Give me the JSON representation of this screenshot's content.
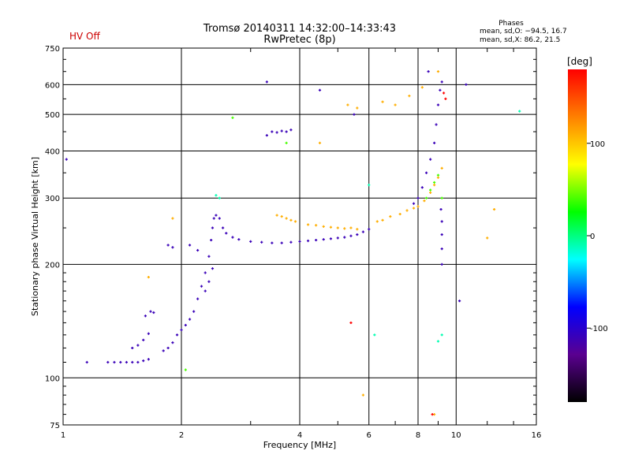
{
  "header": {
    "title": "Tromsø 20140311 14:32:00–14:33:43",
    "subtitle": "RwPretec (8p)",
    "hv_status": "HV Off",
    "hv_color": "#cc0000",
    "phases_title": "Phases",
    "phases_o": "mean, sd,O: −94.5, 16.7",
    "phases_x": "mean, sd,X:  86.2, 21.5"
  },
  "colorbar": {
    "unit": "[deg]",
    "ticks": [
      "100",
      "0",
      "-100"
    ],
    "range": [
      -180,
      180
    ],
    "colors": [
      "#000000",
      "#5a0090",
      "#0000ff",
      "#00ffff",
      "#00ff00",
      "#ffff00",
      "#ff8000",
      "#ff0000"
    ]
  },
  "chart_data": {
    "type": "scatter",
    "xlabel": "Frequency [MHz]",
    "ylabel": "Stationary phase Virtual Height [km]",
    "x_scale": "log",
    "y_scale": "log",
    "xlim": [
      1,
      16
    ],
    "ylim": [
      75,
      750
    ],
    "x_ticks": [
      "1",
      "2",
      "4",
      "6",
      "8",
      "10",
      "16"
    ],
    "y_ticks": [
      "75",
      "100",
      "200",
      "300",
      "400",
      "500",
      "600",
      "750"
    ],
    "grid": true,
    "series": [
      {
        "color_value": -110,
        "points": [
          [
            1.3,
            110
          ],
          [
            1.35,
            110
          ],
          [
            1.4,
            110
          ],
          [
            1.45,
            110
          ],
          [
            1.5,
            110
          ],
          [
            1.55,
            110
          ],
          [
            1.6,
            111
          ],
          [
            1.65,
            112
          ],
          [
            1.5,
            120
          ],
          [
            1.55,
            122
          ],
          [
            1.6,
            126
          ],
          [
            1.65,
            131
          ],
          [
            1.62,
            146
          ],
          [
            1.67,
            150
          ],
          [
            1.7,
            149
          ],
          [
            1.8,
            118
          ],
          [
            1.85,
            120
          ],
          [
            1.9,
            124
          ],
          [
            1.95,
            130
          ],
          [
            2.0,
            134
          ],
          [
            2.05,
            138
          ],
          [
            2.1,
            143
          ],
          [
            2.15,
            150
          ],
          [
            2.2,
            162
          ],
          [
            2.25,
            175
          ],
          [
            2.3,
            190
          ],
          [
            2.35,
            210
          ],
          [
            2.38,
            232
          ],
          [
            2.4,
            250
          ],
          [
            2.42,
            265
          ],
          [
            2.45,
            270
          ],
          [
            2.3,
            170
          ],
          [
            2.35,
            180
          ],
          [
            2.4,
            195
          ],
          [
            1.85,
            225
          ],
          [
            1.9,
            222
          ],
          [
            2.1,
            225
          ],
          [
            2.2,
            218
          ],
          [
            2.5,
            265
          ],
          [
            2.55,
            250
          ],
          [
            2.6,
            242
          ],
          [
            2.7,
            236
          ],
          [
            2.8,
            233
          ],
          [
            3.0,
            230
          ],
          [
            3.2,
            229
          ],
          [
            3.4,
            228
          ],
          [
            3.6,
            228
          ],
          [
            3.8,
            229
          ],
          [
            4.0,
            230
          ],
          [
            4.2,
            231
          ],
          [
            4.4,
            232
          ],
          [
            4.6,
            233
          ],
          [
            4.8,
            234
          ],
          [
            5.0,
            235
          ],
          [
            5.2,
            236
          ],
          [
            5.4,
            238
          ],
          [
            5.6,
            240
          ],
          [
            5.8,
            244
          ],
          [
            6.0,
            248
          ],
          [
            3.3,
            440
          ],
          [
            3.4,
            450
          ],
          [
            3.5,
            448
          ],
          [
            3.6,
            452
          ],
          [
            3.7,
            450
          ],
          [
            3.8,
            455
          ],
          [
            7.8,
            290
          ],
          [
            8.0,
            300
          ],
          [
            8.2,
            320
          ],
          [
            8.4,
            350
          ],
          [
            8.6,
            380
          ],
          [
            8.8,
            420
          ],
          [
            8.9,
            470
          ],
          [
            9.0,
            530
          ],
          [
            9.1,
            580
          ],
          [
            9.2,
            610
          ],
          [
            9.2,
            200
          ],
          [
            9.2,
            220
          ],
          [
            9.2,
            240
          ],
          [
            9.2,
            260
          ],
          [
            9.15,
            280
          ],
          [
            8.5,
            650
          ],
          [
            3.3,
            610
          ],
          [
            4.5,
            580
          ],
          [
            5.5,
            500
          ],
          [
            10.6,
            600
          ],
          [
            10.2,
            160
          ],
          [
            1.15,
            110
          ],
          [
            1.02,
            380
          ]
        ]
      },
      {
        "color_value": 110,
        "points": [
          [
            3.5,
            270
          ],
          [
            3.6,
            268
          ],
          [
            3.7,
            265
          ],
          [
            3.8,
            262
          ],
          [
            3.9,
            260
          ],
          [
            4.2,
            255
          ],
          [
            4.4,
            254
          ],
          [
            4.6,
            252
          ],
          [
            4.8,
            251
          ],
          [
            5.0,
            250
          ],
          [
            5.2,
            249
          ],
          [
            5.4,
            250
          ],
          [
            5.6,
            248
          ],
          [
            6.3,
            260
          ],
          [
            6.5,
            262
          ],
          [
            6.8,
            268
          ],
          [
            7.2,
            272
          ],
          [
            7.5,
            278
          ],
          [
            7.8,
            282
          ],
          [
            8.0,
            285
          ],
          [
            8.3,
            295
          ],
          [
            8.6,
            310
          ],
          [
            8.8,
            325
          ],
          [
            9.0,
            340
          ],
          [
            9.2,
            360
          ],
          [
            5.3,
            530
          ],
          [
            5.6,
            520
          ],
          [
            6.5,
            540
          ],
          [
            7.0,
            530
          ],
          [
            7.6,
            560
          ],
          [
            8.2,
            590
          ],
          [
            9.0,
            650
          ],
          [
            4.5,
            420
          ],
          [
            1.65,
            185
          ],
          [
            1.9,
            265
          ],
          [
            5.8,
            90
          ],
          [
            8.8,
            80
          ],
          [
            12.5,
            280
          ],
          [
            12.0,
            235
          ]
        ]
      },
      {
        "color_value": 40,
        "points": [
          [
            8.4,
            300
          ],
          [
            8.6,
            315
          ],
          [
            8.8,
            330
          ],
          [
            9.0,
            345
          ],
          [
            9.2,
            300
          ],
          [
            3.7,
            420
          ],
          [
            2.7,
            490
          ],
          [
            2.05,
            105
          ]
        ]
      },
      {
        "color_value": 180,
        "points": [
          [
            9.3,
            570
          ],
          [
            9.4,
            550
          ],
          [
            5.4,
            140
          ],
          [
            8.7,
            80
          ]
        ]
      },
      {
        "color_value": -10,
        "points": [
          [
            2.45,
            305
          ],
          [
            2.5,
            300
          ],
          [
            6.0,
            325
          ],
          [
            9.0,
            125
          ],
          [
            9.2,
            130
          ],
          [
            6.2,
            130
          ],
          [
            14.5,
            510
          ]
        ]
      }
    ]
  }
}
